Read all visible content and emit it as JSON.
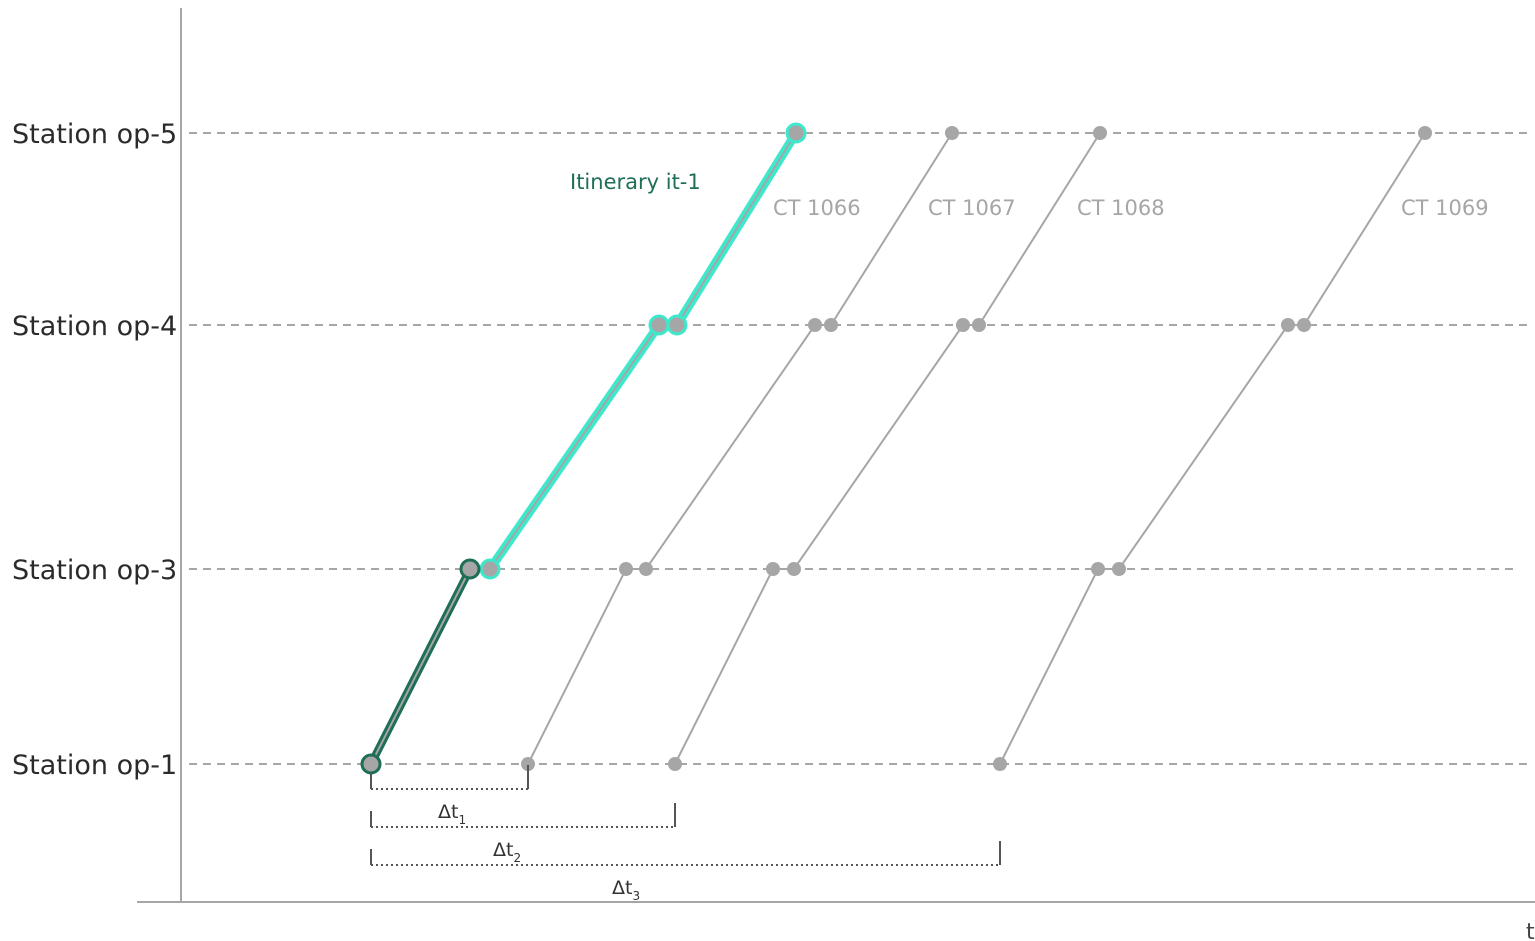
{
  "stations": [
    {
      "id": "op-5",
      "label": "Station op-5"
    },
    {
      "id": "op-4",
      "label": "Station op-4"
    },
    {
      "id": "op-3",
      "label": "Station op-3"
    },
    {
      "id": "op-1",
      "label": "Station op-1"
    }
  ],
  "time_axis_label": "t",
  "trains": [
    {
      "label": "CT 1066",
      "stops": [
        [
          "op-1",
          528,
          528
        ],
        [
          "op-3",
          626,
          646
        ],
        [
          "op-4",
          815,
          831
        ],
        [
          "op-5",
          952,
          952
        ]
      ]
    },
    {
      "label": "CT 1067",
      "stops": [
        [
          "op-1",
          675,
          675
        ],
        [
          "op-3",
          773,
          794
        ],
        [
          "op-4",
          963,
          979
        ],
        [
          "op-5",
          1100,
          1100
        ]
      ]
    },
    {
      "label": "CT 1068",
      "stops": [
        [
          "op-1",
          1000,
          1000
        ],
        [
          "op-3",
          1098,
          1119
        ],
        [
          "op-4",
          1288,
          1304
        ],
        [
          "op-5",
          1425,
          1425
        ]
      ]
    },
    {
      "label": "CT 1069",
      "stops": []
    }
  ],
  "itinerary": {
    "label": "Itinerary it-1",
    "walk": [
      [
        "op-1",
        371
      ],
      [
        "op-3",
        470
      ]
    ],
    "ride": [
      [
        "op-3",
        490
      ],
      [
        "op-4",
        659
      ],
      [
        "op-4",
        677
      ],
      [
        "op-5",
        796
      ]
    ]
  },
  "deltas": [
    {
      "symbol": "Δt",
      "sub": "1",
      "from": 371,
      "to": 528
    },
    {
      "symbol": "Δt",
      "sub": "2",
      "from": 371,
      "to": 675
    },
    {
      "symbol": "Δt",
      "sub": "3",
      "from": 371,
      "to": 1000
    }
  ],
  "colors": {
    "grid": "#a6a6a6",
    "axis": "#a6a6a6",
    "train": "#a6a6a6",
    "itinerary_ride": "#3ee8cc",
    "itinerary_walk": "#1e6e58",
    "delta": "#555555"
  }
}
